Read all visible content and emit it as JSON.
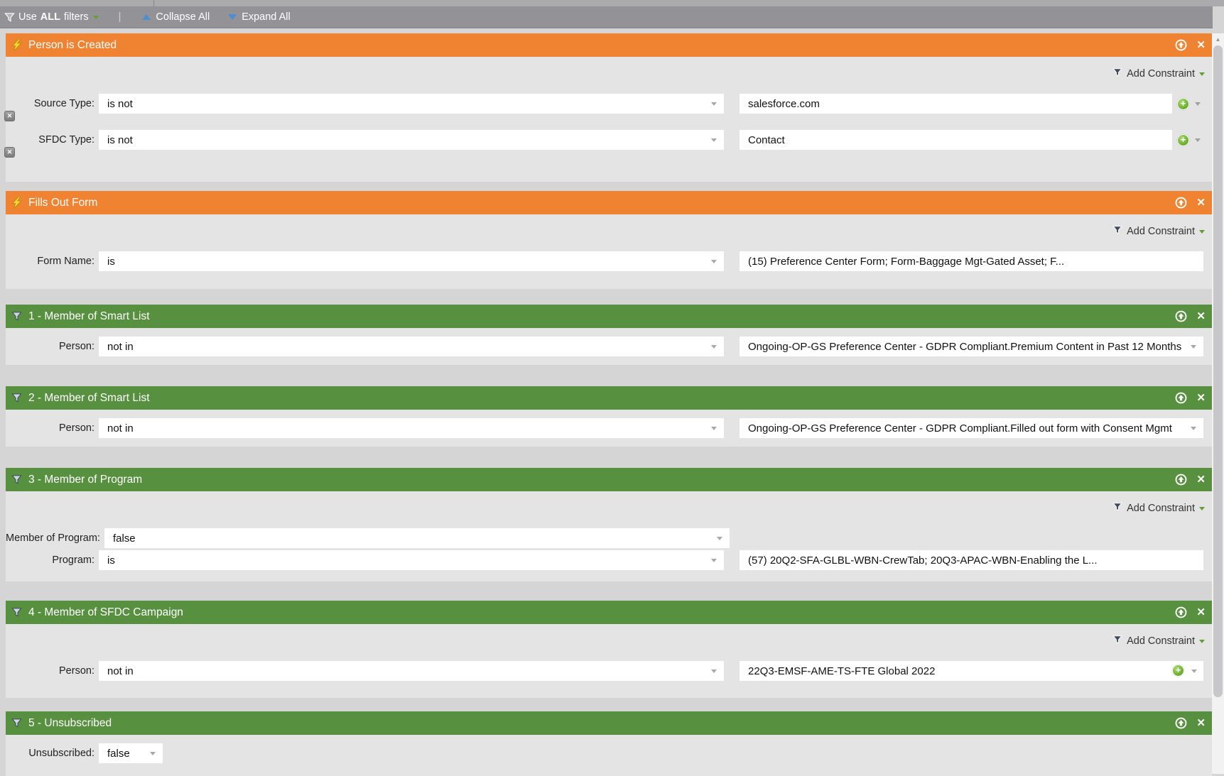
{
  "toolbar": {
    "use_prefix": "Use",
    "logic": "ALL",
    "use_suffix": "filters",
    "separator": "|",
    "collapse_all": "Collapse All",
    "expand_all": "Expand All"
  },
  "icons": {
    "close_glyph": "✕",
    "plus_glyph": "+",
    "scroll_up_glyph": "▲"
  },
  "colors": {
    "trigger_header": "#EF8331",
    "filter_header": "#579140",
    "toolbar_bg": "#939397",
    "panel_body": "#E4E4E4",
    "page_bg": "#D5D5D6",
    "add_value_green": "#67AA28"
  },
  "panels": [
    {
      "title": "Person is Created",
      "type": "trigger",
      "add_constraint_label": "Add Constraint",
      "rows": [
        {
          "label": "Source Type:",
          "operator": "is not",
          "value": "salesforce.com",
          "value_style": "plus-outside",
          "removable": true
        },
        {
          "label": "SFDC Type:",
          "operator": "is not",
          "value": "Contact",
          "value_style": "plus-outside",
          "removable": true
        }
      ]
    },
    {
      "title": "Fills Out Form",
      "type": "trigger",
      "add_constraint_label": "Add Constraint",
      "rows": [
        {
          "label": "Form Name:",
          "operator": "is",
          "value": "(15) Preference Center Form; Form-Baggage Mgt-Gated Asset; F...",
          "value_style": "plain"
        }
      ]
    },
    {
      "title": "1 - Member of Smart List",
      "type": "filter",
      "rows": [
        {
          "label": "Person:",
          "operator": "not in",
          "value": "Ongoing-OP-GS Preference Center - GDPR Compliant.Premium Content in Past 12 Months",
          "value_style": "arrow-in"
        }
      ]
    },
    {
      "title": "2 - Member of Smart List",
      "type": "filter",
      "rows": [
        {
          "label": "Person:",
          "operator": "not in",
          "value": "Ongoing-OP-GS Preference Center - GDPR Compliant.Filled out form with Consent Mgmt",
          "value_style": "arrow-in"
        }
      ]
    },
    {
      "title": "3 - Member of Program",
      "type": "filter",
      "add_constraint_label": "Add Constraint",
      "rows": [
        {
          "label": "Member of Program:",
          "operator": "false",
          "value": null
        },
        {
          "label": "Program:",
          "operator": "is",
          "value": "(57) 20Q2-SFA-GLBL-WBN-CrewTab; 20Q3-APAC-WBN-Enabling the L...",
          "value_style": "plain"
        }
      ]
    },
    {
      "title": "4 - Member of SFDC Campaign",
      "type": "filter",
      "add_constraint_label": "Add Constraint",
      "rows": [
        {
          "label": "Person:",
          "operator": "not in",
          "value": "22Q3-EMSF-AME-TS-FTE Global 2022",
          "value_style": "plus-arrow-in"
        }
      ]
    },
    {
      "title": "5 - Unsubscribed",
      "type": "filter",
      "rows": [
        {
          "label": "Unsubscribed:",
          "operator": "false",
          "value": null,
          "small": true
        }
      ]
    }
  ]
}
